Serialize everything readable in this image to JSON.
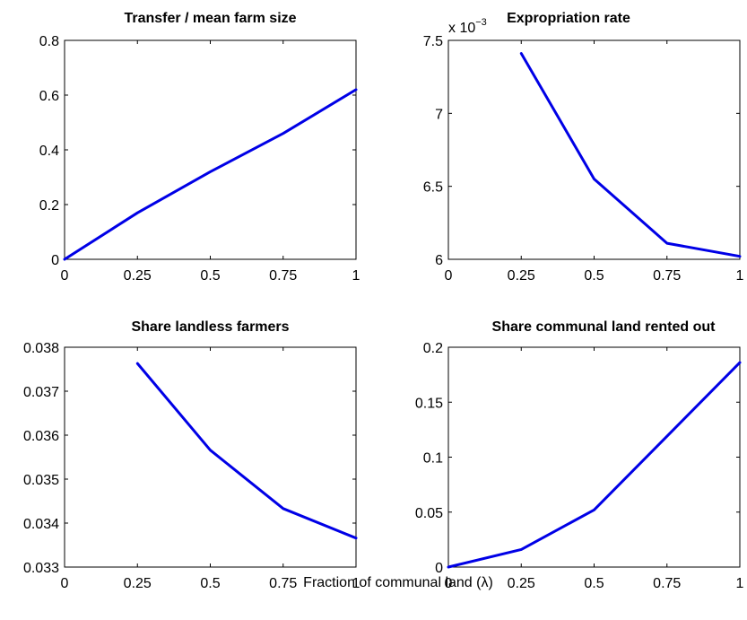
{
  "figure": {
    "xlabel": "Fraction of communal land (λ)",
    "line_color": "#0000e6"
  },
  "chart_data": [
    {
      "type": "line",
      "title": "Transfer / mean farm size",
      "xlabel": "",
      "ylabel": "",
      "x": [
        0,
        0.25,
        0.5,
        0.75,
        1
      ],
      "y": [
        0,
        0.17,
        0.32,
        0.46,
        0.62
      ],
      "xlim": [
        0,
        1
      ],
      "ylim": [
        0,
        0.8
      ],
      "xticks": [
        "0",
        "0.25",
        "0.5",
        "0.75",
        "1"
      ],
      "yticks": [
        "0",
        "0.2",
        "0.4",
        "0.6",
        "0.8"
      ],
      "grid": false
    },
    {
      "type": "line",
      "title": "Expropriation rate",
      "xlabel": "",
      "ylabel": "",
      "scale_label": "x 10",
      "scale_exponent": "−3",
      "x": [
        0.25,
        0.5,
        0.75,
        1
      ],
      "y": [
        0.00741,
        0.00655,
        0.00611,
        0.00602
      ],
      "xlim": [
        0,
        1
      ],
      "ylim": [
        0.006,
        0.0075
      ],
      "xticks": [
        "0",
        "0.25",
        "0.5",
        "0.75",
        "1"
      ],
      "yticks": [
        "6",
        "6.5",
        "7",
        "7.5"
      ],
      "grid": false
    },
    {
      "type": "line",
      "title": "Share landless farmers",
      "xlabel": "",
      "ylabel": "",
      "x": [
        0.25,
        0.5,
        0.75,
        1
      ],
      "y": [
        0.03763,
        0.03566,
        0.03433,
        0.03366
      ],
      "xlim": [
        0,
        1
      ],
      "ylim": [
        0.033,
        0.038
      ],
      "xticks": [
        "0",
        "0.25",
        "0.5",
        "0.75",
        "1"
      ],
      "yticks": [
        "0.033",
        "0.034",
        "0.035",
        "0.036",
        "0.037",
        "0.038"
      ],
      "grid": false
    },
    {
      "type": "line",
      "title": "Share communal land rented out",
      "xlabel": "",
      "ylabel": "",
      "x": [
        0,
        0.25,
        0.5,
        0.75,
        1
      ],
      "y": [
        0,
        0.016,
        0.052,
        0.119,
        0.186
      ],
      "xlim": [
        0,
        1
      ],
      "ylim": [
        0,
        0.2
      ],
      "xticks": [
        "0",
        "0.25",
        "0.5",
        "0.75",
        "1"
      ],
      "yticks": [
        "0",
        "0.05",
        "0.1",
        "0.15",
        "0.2"
      ],
      "grid": false
    }
  ]
}
